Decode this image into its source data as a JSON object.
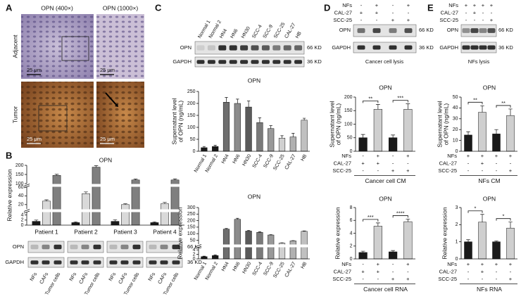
{
  "panel_labels": [
    "A",
    "B",
    "C",
    "D",
    "E"
  ],
  "ihc": {
    "columns": [
      "OPN (400×)",
      "OPN (1000×)"
    ],
    "rows": [
      "Adjacent",
      "Tumor"
    ],
    "scale_bar": "25 μm"
  },
  "blot": {
    "rows": [
      "OPN",
      "GAPDH"
    ],
    "sizes": [
      "66 KD",
      "36 KD"
    ],
    "captions": [
      "Cancer cell lysis",
      "NFs lysis"
    ]
  },
  "chart_data": [
    {
      "type": "bar",
      "title": "OPN",
      "ylabel": [
        "Relative expression"
      ],
      "categories": [
        "Patient 1",
        "Patient 2",
        "Patient 3",
        "Patient 4"
      ],
      "series": [
        {
          "name": "NFs",
          "color": "#1a1a1a",
          "values": [
            1.5,
            1,
            1.5,
            1
          ],
          "errors": [
            0.5,
            0.3,
            0.6,
            0.3
          ]
        },
        {
          "name": "CAFs",
          "color": "#d9d9d9",
          "values": [
            28,
            45,
            20,
            22
          ],
          "errors": [
            3,
            4,
            2,
            3
          ]
        },
        {
          "name": "Tumor cells",
          "color": "#7f7f7f",
          "values": [
            145,
            190,
            120,
            120
          ],
          "errors": [
            6,
            8,
            5,
            6
          ]
        }
      ],
      "segments": [
        {
          "ylim": [
            0,
            5
          ],
          "yticks": [
            0,
            2,
            4
          ]
        },
        {
          "ylim": [
            10,
            60
          ],
          "yticks": [
            20,
            40,
            60
          ]
        },
        {
          "ylim": [
            100,
            200
          ],
          "yticks": [
            100,
            150,
            200
          ]
        }
      ]
    },
    {
      "type": "bar",
      "title": "OPN",
      "ylabel": [
        "Supernatant level",
        "of OPN (ng/mL)"
      ],
      "categories": [
        "Normal 1",
        "Normal 2",
        "HN4",
        "HN6",
        "HN30",
        "SCC-4",
        "SCC-9",
        "SCC-25",
        "CAL-27",
        "HB"
      ],
      "values": [
        15,
        20,
        205,
        200,
        185,
        120,
        95,
        55,
        60,
        130
      ],
      "errors": [
        5,
        5,
        20,
        18,
        25,
        20,
        12,
        10,
        15,
        8
      ],
      "colors": [
        "#1a1a1a",
        "#1a1a1a",
        "#6e6e6e",
        "#8c8c8c",
        "#5a5a5a",
        "#7a7a7a",
        "#999999",
        "#d0d0d0",
        "#b0b0b0",
        "#c0c0c0"
      ],
      "ylim": [
        0,
        250
      ],
      "yticks": [
        0,
        50,
        100,
        150,
        200,
        250
      ]
    },
    {
      "type": "bar",
      "title": "OPN",
      "ylabel": [
        "Relative expression"
      ],
      "categories": [
        "Normal 1",
        "Normal 2",
        "HN4",
        "HN6",
        "HN30",
        "SCC-4",
        "SCC-9",
        "SCC-25",
        "CAL-27",
        "HB"
      ],
      "values": [
        1,
        1.5,
        135,
        210,
        120,
        110,
        90,
        28,
        45,
        118
      ],
      "errors": [
        0.2,
        0.3,
        5,
        8,
        6,
        5,
        3,
        2,
        2,
        3
      ],
      "colors": [
        "#1a1a1a",
        "#1a1a1a",
        "#6e6e6e",
        "#8c8c8c",
        "#5a5a5a",
        "#7a7a7a",
        "#999999",
        "#d0d0d0",
        "#b0b0b0",
        "#c0c0c0"
      ],
      "segments": [
        {
          "ylim": [
            0,
            5
          ],
          "yticks": [
            0,
            2,
            4
          ]
        },
        {
          "ylim": [
            20,
            300
          ],
          "yticks": [
            50,
            100,
            150,
            200,
            250,
            300
          ]
        }
      ]
    },
    {
      "type": "bar",
      "title": "OPN",
      "ylabel": [
        "Supernatant level",
        "of OPN (ng/mL)"
      ],
      "values": [
        50,
        155,
        50,
        155
      ],
      "errors": [
        12,
        18,
        10,
        20
      ],
      "colors": [
        "#1a1a1a",
        "#cfcfcf",
        "#1a1a1a",
        "#cfcfcf"
      ],
      "ylim": [
        0,
        200
      ],
      "yticks": [
        0,
        50,
        100,
        150,
        200
      ],
      "conditions": [
        {
          "name": "NFs",
          "marks": [
            "-",
            "+",
            "-",
            "+"
          ]
        },
        {
          "name": "CAL-27",
          "marks": [
            "+",
            "+",
            "-",
            "-"
          ]
        },
        {
          "name": "SCC-25",
          "marks": [
            "-",
            "-",
            "+",
            "+"
          ]
        }
      ],
      "xlabel": "Cancer cell CM",
      "significance": [
        {
          "label": "**",
          "bars": [
            0,
            1
          ]
        },
        {
          "label": "***",
          "bars": [
            2,
            3
          ]
        }
      ]
    },
    {
      "type": "bar",
      "title": "OPN",
      "ylabel": [
        "Relative expression"
      ],
      "values": [
        1,
        5.1,
        1.1,
        5.8
      ],
      "errors": [
        0.2,
        0.5,
        0.2,
        0.4
      ],
      "colors": [
        "#1a1a1a",
        "#cfcfcf",
        "#1a1a1a",
        "#cfcfcf"
      ],
      "ylim": [
        0,
        8
      ],
      "yticks": [
        0,
        2,
        4,
        6,
        8
      ],
      "conditions": [
        {
          "name": "NFs",
          "marks": [
            "-",
            "+",
            "-",
            "+"
          ]
        },
        {
          "name": "CAL-27",
          "marks": [
            "+",
            "+",
            "-",
            "-"
          ]
        },
        {
          "name": "SCC-25",
          "marks": [
            "-",
            "-",
            "+",
            "+"
          ]
        }
      ],
      "xlabel": "Cancer cell RNA",
      "significance": [
        {
          "label": "***",
          "bars": [
            0,
            1
          ]
        },
        {
          "label": "****",
          "bars": [
            2,
            3
          ]
        }
      ]
    },
    {
      "type": "bar",
      "title": "OPN",
      "ylabel": [
        "Supernatant level",
        "of OPN (ng/mL)"
      ],
      "values": [
        15,
        36,
        16,
        33
      ],
      "errors": [
        3,
        6,
        4,
        6
      ],
      "colors": [
        "#1a1a1a",
        "#cfcfcf",
        "#1a1a1a",
        "#cfcfcf"
      ],
      "ylim": [
        0,
        50
      ],
      "yticks": [
        0,
        10,
        20,
        30,
        40,
        50
      ],
      "conditions": [
        {
          "name": "NFs",
          "marks": [
            "+",
            "+",
            "+",
            "+"
          ]
        },
        {
          "name": "CAL-27",
          "marks": [
            "-",
            "+",
            "-",
            "-"
          ]
        },
        {
          "name": "SCC-25",
          "marks": [
            "-",
            "-",
            "-",
            "+"
          ]
        }
      ],
      "xlabel": "NFs CM",
      "significance": [
        {
          "label": "**",
          "bars": [
            0,
            1
          ]
        },
        {
          "label": "**",
          "bars": [
            2,
            3
          ]
        }
      ]
    },
    {
      "type": "bar",
      "title": "OPN",
      "ylabel": [
        "Relative expression"
      ],
      "values": [
        1,
        2.15,
        1,
        1.8
      ],
      "errors": [
        0.12,
        0.45,
        0.05,
        0.35
      ],
      "colors": [
        "#1a1a1a",
        "#cfcfcf",
        "#1a1a1a",
        "#cfcfcf"
      ],
      "ylim": [
        0,
        3
      ],
      "yticks": [
        0,
        1,
        2,
        3
      ],
      "conditions": [
        {
          "name": "NFs",
          "marks": [
            "+",
            "+",
            "+",
            "+"
          ]
        },
        {
          "name": "CAL-27",
          "marks": [
            "-",
            "+",
            "-",
            "-"
          ]
        },
        {
          "name": "SCC-25",
          "marks": [
            "-",
            "-",
            "-",
            "+"
          ]
        }
      ],
      "xlabel": "NFs RNA",
      "significance": [
        {
          "label": "*",
          "bars": [
            0,
            1
          ]
        },
        {
          "label": "*",
          "bars": [
            2,
            3
          ]
        }
      ]
    }
  ]
}
